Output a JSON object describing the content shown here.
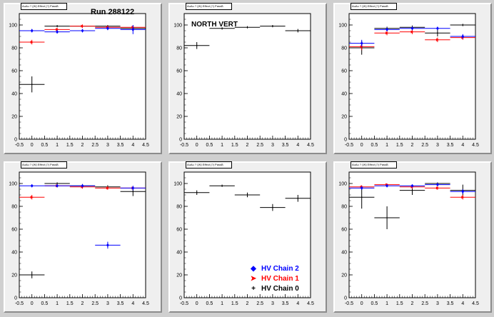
{
  "run_label": "Run 288122",
  "colors": {
    "hv_chain_2": "#0000ff",
    "hv_chain_1": "#ff0000",
    "hv_chain_0": "#000000"
  },
  "legend": [
    {
      "label": "HV Chain 2",
      "color": "#0000ff",
      "marker": "diamond"
    },
    {
      "label": "HV Chain 1",
      "color": "#ff0000",
      "marker": "arrow"
    },
    {
      "label": "HV Chain 0",
      "color": "#000000",
      "marker": "plus"
    }
  ],
  "chart_data": [
    {
      "type": "scatter",
      "pad_title": "AuAu ? (W) Effect (?) PassB",
      "x_ticks": [
        "-0.5",
        "0",
        "0.5",
        "1",
        "1.5",
        "2",
        "2.5",
        "3",
        "3.5",
        "4",
        "4.5"
      ],
      "y_ticks": [
        "0",
        "20",
        "40",
        "60",
        "80",
        "100"
      ],
      "xlim": [
        -0.5,
        4.5
      ],
      "ylim": [
        0,
        110
      ],
      "series": [
        {
          "name": "HV Chain 2",
          "x": [
            0,
            1,
            2,
            3,
            4
          ],
          "y": [
            95,
            94,
            95,
            97,
            96
          ],
          "xerr": 0.5,
          "yerr": [
            1.5,
            1.5,
            1.5,
            1.5,
            4
          ]
        },
        {
          "name": "HV Chain 1",
          "x": [
            0,
            1,
            2,
            3,
            4
          ],
          "y": [
            85,
            96,
            99,
            98,
            98
          ],
          "xerr": 0.5,
          "yerr": [
            2,
            1.5,
            1.5,
            1.5,
            1.5
          ]
        },
        {
          "name": "HV Chain 0",
          "x": [
            0,
            1,
            2,
            3,
            4
          ],
          "y": [
            48,
            99,
            99,
            99,
            97
          ],
          "xerr": 0.5,
          "yerr": [
            7,
            1,
            1,
            1,
            2
          ]
        }
      ]
    },
    {
      "type": "scatter",
      "pad_title": "AuAu ? (W) Effect (?) PassB",
      "annotation": "NORTH VERT",
      "x_ticks": [
        "-0.5",
        "0",
        "0.5",
        "1",
        "1.5",
        "2",
        "2.5",
        "3",
        "3.5",
        "4",
        "4.5"
      ],
      "y_ticks": [
        "0",
        "20",
        "40",
        "60",
        "80",
        "100"
      ],
      "xlim": [
        -0.5,
        4.5
      ],
      "ylim": [
        0,
        110
      ],
      "series": [
        {
          "name": "HV Chain 0",
          "x": [
            0,
            1,
            2,
            3,
            4
          ],
          "y": [
            82,
            97,
            98,
            99,
            95
          ],
          "xerr": 0.5,
          "yerr": [
            3,
            1,
            1,
            1,
            1.5
          ]
        }
      ]
    },
    {
      "type": "scatter",
      "pad_title": "AuAu ? (W) Effect (?) PassB",
      "x_ticks": [
        "-0.5",
        "0",
        "0.5",
        "1",
        "1.5",
        "2",
        "2.5",
        "3",
        "3.5",
        "4",
        "4.5"
      ],
      "y_ticks": [
        "0",
        "20",
        "40",
        "60",
        "80",
        "100"
      ],
      "xlim": [
        -0.5,
        4.5
      ],
      "ylim": [
        0,
        110
      ],
      "series": [
        {
          "name": "HV Chain 2",
          "x": [
            0,
            1,
            2,
            3,
            4
          ],
          "y": [
            84,
            96,
            97,
            97,
            90
          ],
          "xerr": 0.5,
          "yerr": [
            3,
            1.5,
            1.5,
            1.5,
            2
          ]
        },
        {
          "name": "HV Chain 1",
          "x": [
            0,
            1,
            2,
            3,
            4
          ],
          "y": [
            81,
            93,
            94,
            87,
            89
          ],
          "xerr": 0.5,
          "yerr": [
            3,
            2,
            2,
            2,
            2
          ]
        },
        {
          "name": "HV Chain 0",
          "x": [
            0,
            1,
            2,
            3,
            4
          ],
          "y": [
            80,
            97,
            98,
            93,
            100
          ],
          "xerr": 0.5,
          "yerr": [
            6,
            1.5,
            1.5,
            3,
            1
          ]
        }
      ]
    },
    {
      "type": "scatter",
      "pad_title": "AuAu ? (W) Effect (?) PassB",
      "x_ticks": [
        "-0.5",
        "0",
        "0.5",
        "1",
        "1.5",
        "2",
        "2.5",
        "3",
        "3.5",
        "4",
        "4.5"
      ],
      "y_ticks": [
        "0",
        "20",
        "40",
        "60",
        "80",
        "100"
      ],
      "xlim": [
        -0.5,
        4.5
      ],
      "ylim": [
        0,
        110
      ],
      "series": [
        {
          "name": "HV Chain 2",
          "x": [
            0,
            1,
            2,
            3,
            4
          ],
          "y": [
            98,
            98,
            98,
            46,
            96
          ],
          "xerr": 0.5,
          "yerr": [
            1,
            1,
            1,
            3,
            2
          ]
        },
        {
          "name": "HV Chain 1",
          "x": [
            0,
            1,
            2,
            3,
            4
          ],
          "y": [
            88,
            98,
            97,
            96,
            96
          ],
          "xerr": 0.5,
          "yerr": [
            2,
            1.5,
            1.5,
            1.5,
            1.5
          ]
        },
        {
          "name": "HV Chain 0",
          "x": [
            0,
            1,
            2,
            3,
            4
          ],
          "y": [
            20,
            100,
            98,
            97,
            93
          ],
          "xerr": 0.5,
          "yerr": [
            3,
            1,
            1.5,
            1.5,
            4
          ]
        }
      ]
    },
    {
      "type": "scatter",
      "pad_title": "AuAu ? (W) Effect (?) PassB",
      "x_ticks": [
        "-0.5",
        "0",
        "0.5",
        "1",
        "1.5",
        "2",
        "2.5",
        "3",
        "3.5",
        "4",
        "4.5"
      ],
      "y_ticks": [
        "0",
        "20",
        "40",
        "60",
        "80",
        "100"
      ],
      "xlim": [
        -0.5,
        4.5
      ],
      "ylim": [
        0,
        110
      ],
      "has_legend": true,
      "series": [
        {
          "name": "HV Chain 0",
          "x": [
            0,
            1,
            2,
            3,
            4
          ],
          "y": [
            92,
            98,
            90,
            79,
            87
          ],
          "xerr": 0.5,
          "yerr": [
            2,
            1,
            2,
            3,
            3
          ]
        }
      ]
    },
    {
      "type": "scatter",
      "pad_title": "AuAu ? (W) Effect (?) PassB",
      "x_ticks": [
        "-0.5",
        "0",
        "0.5",
        "1",
        "1.5",
        "2",
        "2.5",
        "3",
        "3.5",
        "4",
        "4.5"
      ],
      "y_ticks": [
        "0",
        "20",
        "40",
        "60",
        "80",
        "100"
      ],
      "xlim": [
        -0.5,
        4.5
      ],
      "ylim": [
        0,
        110
      ],
      "series": [
        {
          "name": "HV Chain 2",
          "x": [
            0,
            1,
            2,
            3,
            4
          ],
          "y": [
            96,
            98,
            98,
            99,
            93
          ],
          "xerr": 0.5,
          "yerr": [
            1.5,
            1,
            1,
            1,
            2
          ]
        },
        {
          "name": "HV Chain 1",
          "x": [
            0,
            1,
            2,
            3,
            4
          ],
          "y": [
            97,
            99,
            97,
            96,
            88
          ],
          "xerr": 0.5,
          "yerr": [
            1.5,
            1,
            1.5,
            1.5,
            2
          ]
        },
        {
          "name": "HV Chain 0",
          "x": [
            0,
            1,
            2,
            3,
            4
          ],
          "y": [
            88,
            70,
            94,
            100,
            94
          ],
          "xerr": 0.5,
          "yerr": [
            10,
            10,
            4,
            1,
            5
          ]
        }
      ]
    }
  ]
}
